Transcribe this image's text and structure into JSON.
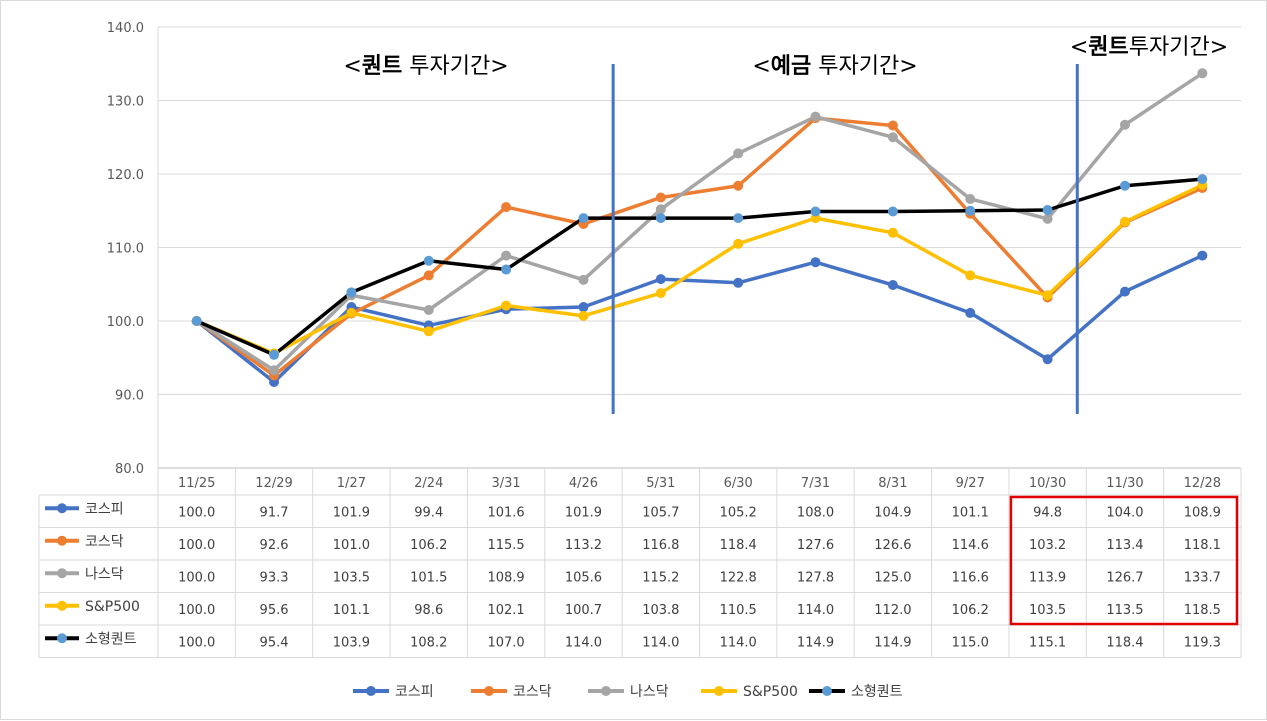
{
  "chart_data": {
    "type": "line",
    "categories": [
      "11/25",
      "12/29",
      "1/27",
      "2/24",
      "3/31",
      "4/26",
      "5/31",
      "6/30",
      "7/31",
      "8/31",
      "9/27",
      "10/30",
      "11/30",
      "12/28"
    ],
    "ylim": [
      80,
      140
    ],
    "yticks": [
      "80.0",
      "90.0",
      "100.0",
      "110.0",
      "120.0",
      "130.0",
      "140.0"
    ],
    "series": [
      {
        "name": "코스피",
        "color": "#4472c4",
        "values": [
          100.0,
          91.7,
          101.9,
          99.4,
          101.6,
          101.9,
          105.7,
          105.2,
          108.0,
          104.9,
          101.1,
          94.8,
          104.0,
          108.9
        ],
        "labels": [
          "100.0",
          "91.7",
          "101.9",
          "99.4",
          "101.6",
          "101.9",
          "105.7",
          "105.2",
          "108.0",
          "104.9",
          "101.1",
          "94.8",
          "104.0",
          "108.9"
        ]
      },
      {
        "name": "코스닥",
        "color": "#ed7d31",
        "values": [
          100.0,
          92.6,
          101.0,
          106.2,
          115.5,
          113.2,
          116.8,
          118.4,
          127.6,
          126.6,
          114.6,
          103.2,
          113.4,
          118.1
        ],
        "labels": [
          "100.0",
          "92.6",
          "101.0",
          "106.2",
          "115.5",
          "113.2",
          "116.8",
          "118.4",
          "127.6",
          "126.6",
          "114.6",
          "103.2",
          "113.4",
          "118.1"
        ]
      },
      {
        "name": "나스닥",
        "color": "#a5a5a5",
        "values": [
          100.0,
          93.3,
          103.5,
          101.5,
          108.9,
          105.6,
          115.2,
          122.8,
          127.8,
          125.0,
          116.6,
          113.9,
          126.7,
          133.7
        ],
        "labels": [
          "100.0",
          "93.3",
          "103.5",
          "101.5",
          "108.9",
          "105.6",
          "115.2",
          "122.8",
          "127.8",
          "125.0",
          "116.6",
          "113.9",
          "126.7",
          "133.7"
        ]
      },
      {
        "name": "S&P500",
        "color": "#ffc000",
        "values": [
          100.0,
          95.6,
          101.1,
          98.6,
          102.1,
          100.7,
          103.8,
          110.5,
          114.0,
          112.0,
          106.2,
          103.5,
          113.5,
          118.5
        ],
        "labels": [
          "100.0",
          "95.6",
          "101.1",
          "98.6",
          "102.1",
          "100.7",
          "103.8",
          "110.5",
          "114.0",
          "112.0",
          "106.2",
          "103.5",
          "113.5",
          "118.5"
        ]
      },
      {
        "name": "소형퀀트",
        "color": "#000000",
        "marker_color": "#5b9bd5",
        "values": [
          100.0,
          95.4,
          103.9,
          108.2,
          107.0,
          114.0,
          114.0,
          114.0,
          114.9,
          114.9,
          115.0,
          115.1,
          118.4,
          119.3
        ],
        "labels": [
          "100.0",
          "95.4",
          "103.9",
          "108.2",
          "107.0",
          "114.0",
          "114.0",
          "114.0",
          "114.9",
          "114.9",
          "115.0",
          "115.1",
          "118.4",
          "119.3"
        ]
      }
    ],
    "annotations": [
      {
        "lt": "<",
        "bold": "퀀트",
        "rest": " 투자기간>"
      },
      {
        "lt": "<",
        "bold": "예금",
        "rest": " 투자기간>"
      },
      {
        "lt": "<",
        "bold": "퀀트",
        "rest": "투자기간>"
      }
    ],
    "dividers_after_category": [
      "4/26",
      "10/30"
    ],
    "divider_color": "#4472c4",
    "highlight_box": {
      "from_category": "10/30",
      "to_category": "12/28",
      "series_from": "코스피",
      "series_to": "S&P500",
      "color": "#e00000"
    },
    "legend_position": "bottom"
  }
}
